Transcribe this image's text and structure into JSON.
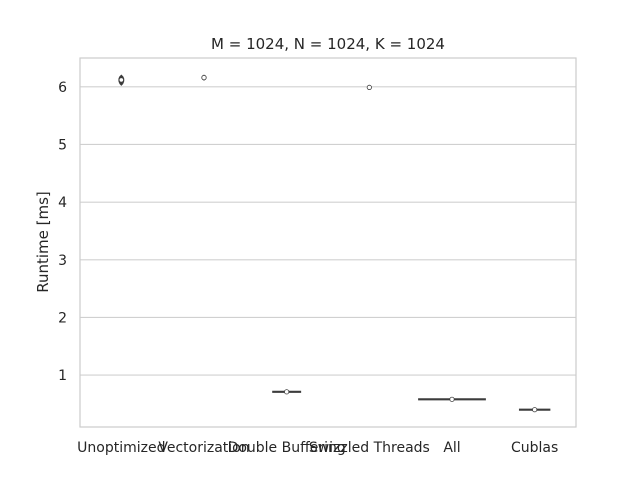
{
  "chart_data": {
    "type": "violin",
    "title": "M = 1024, N = 1024, K = 1024",
    "xlabel": "",
    "ylabel": "Runtime [ms]",
    "categories": [
      "Unoptimized",
      "Vectorization",
      "Double Buffering",
      "Swizzled Threads",
      "All",
      "Cublas"
    ],
    "ylim": [
      0.1,
      6.5
    ],
    "yticks": [
      1,
      2,
      3,
      4,
      5,
      6
    ],
    "grid": "horizontal",
    "series": [
      {
        "values": [
          6.12,
          6.16,
          0.71,
          5.99,
          0.58,
          0.4
        ],
        "min": [
          6.03,
          6.12,
          0.7,
          5.98,
          0.58,
          0.39
        ],
        "max": [
          6.2,
          6.2,
          0.72,
          6.01,
          0.58,
          0.41
        ],
        "width": [
          0.06,
          0.05,
          0.35,
          0.04,
          0.82,
          0.38
        ]
      }
    ],
    "colors": {
      "violin": "#3c3c3c",
      "grid": "#d0d0d0",
      "median": "#ffffff"
    }
  }
}
